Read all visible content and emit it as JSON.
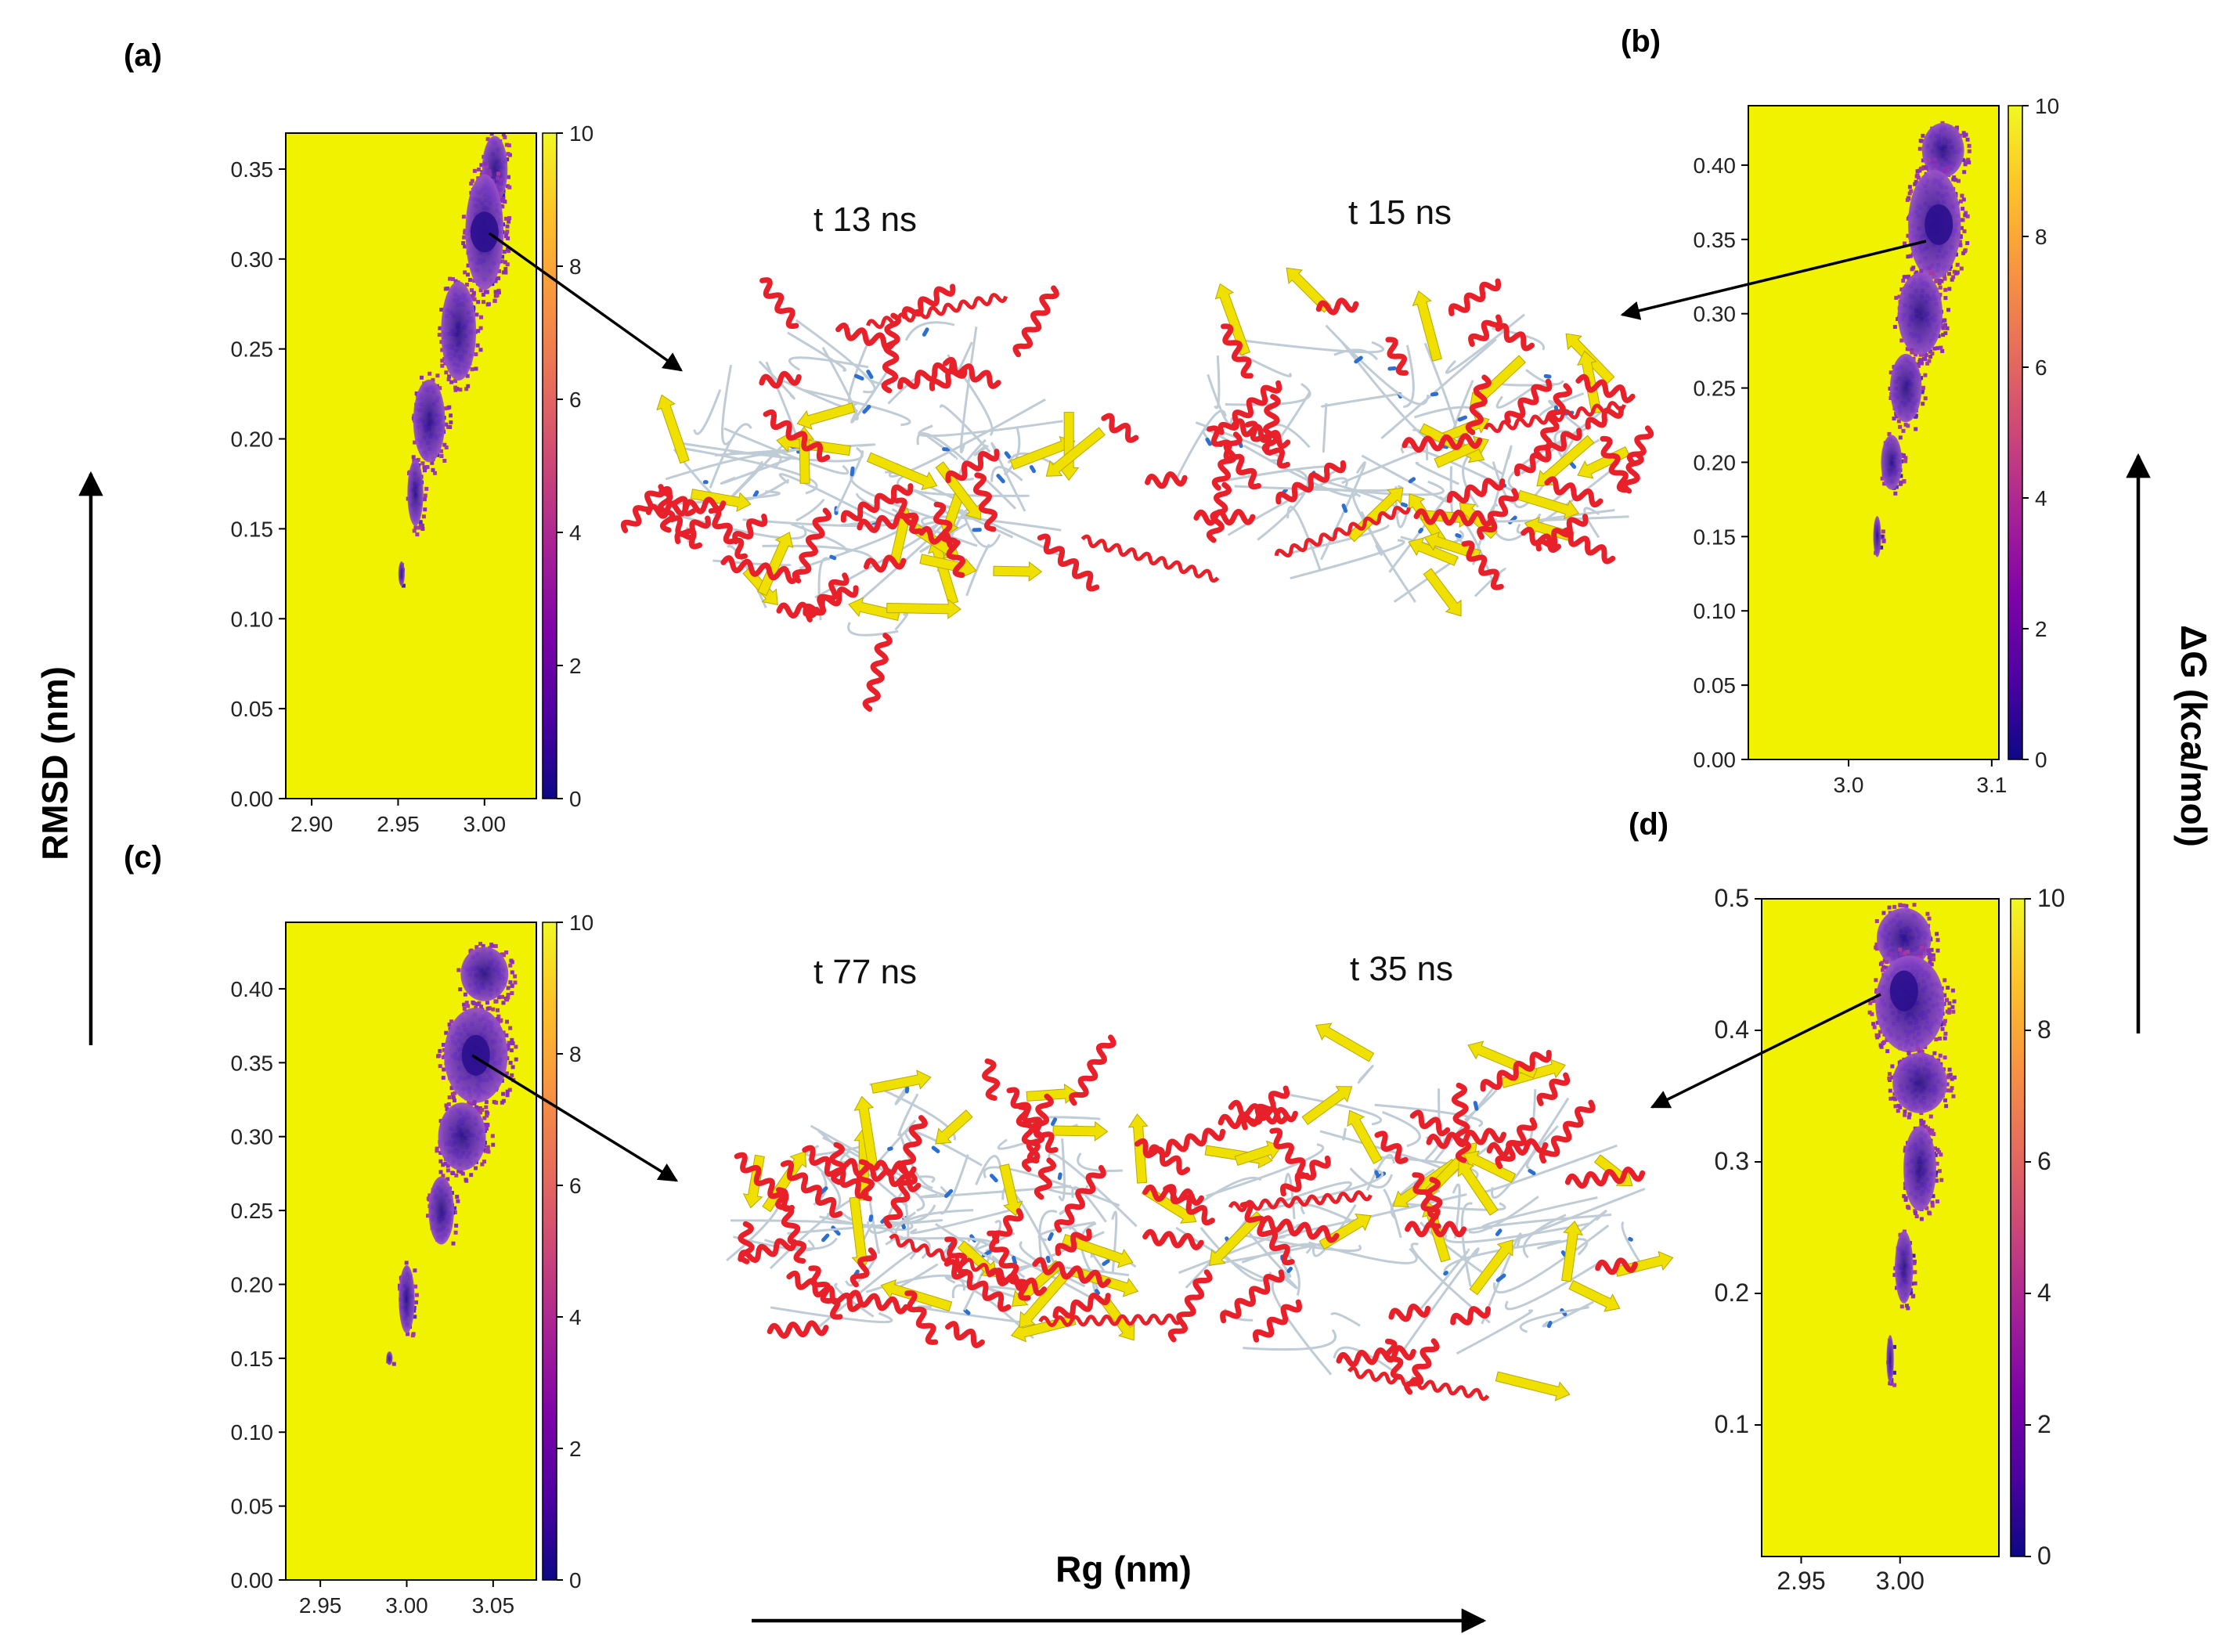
{
  "figure": {
    "axis_label_x": "Rg (nm)",
    "axis_label_y": "RMSD (nm)",
    "axis_label_energy": "ΔG (kca/mol)"
  },
  "structures": [
    {
      "label": "t 13 ns"
    },
    {
      "label": "t 15 ns"
    },
    {
      "label": "t 77 ns"
    },
    {
      "label": "t 35 ns"
    }
  ],
  "colors": {
    "background_free_energy": "#F1F200",
    "helix": "#E8202A",
    "sheet": "#F0E000",
    "coil": "#BFCCD6",
    "turn": "#2D6FD0"
  },
  "chart_data": [
    {
      "panel_label": "(a)",
      "type": "heatmap",
      "title": "",
      "xlabel": "Rg (nm)",
      "ylabel": "RMSD (nm)",
      "xlim": [
        2.885,
        3.03
      ],
      "ylim": [
        0.0,
        0.37
      ],
      "xticks": [
        2.9,
        2.95,
        3.0
      ],
      "xtick_labels": [
        "2.90",
        "2.95",
        "3.00"
      ],
      "yticks": [
        0.0,
        0.05,
        0.1,
        0.15,
        0.2,
        0.25,
        0.3,
        0.35
      ],
      "ytick_labels": [
        "0.00",
        "0.05",
        "0.10",
        "0.15",
        "0.20",
        "0.25",
        "0.30",
        "0.35"
      ],
      "colorbar_range": [
        0,
        10
      ],
      "colorbar_ticks": [
        "0",
        "2",
        "4",
        "6",
        "8",
        "10"
      ],
      "colormap": "plasma",
      "minimum": {
        "rg": 3.0,
        "rmsd": 0.315
      },
      "density_region": [
        {
          "rg": 3.006,
          "rmsd": 0.35,
          "width": 0.016,
          "height": 0.04
        },
        {
          "rg": 3.0,
          "rmsd": 0.315,
          "width": 0.024,
          "height": 0.07
        },
        {
          "rg": 2.985,
          "rmsd": 0.26,
          "width": 0.022,
          "height": 0.06
        },
        {
          "rg": 2.968,
          "rmsd": 0.21,
          "width": 0.02,
          "height": 0.05
        },
        {
          "rg": 2.96,
          "rmsd": 0.17,
          "width": 0.01,
          "height": 0.04
        },
        {
          "rg": 2.952,
          "rmsd": 0.125,
          "width": 0.004,
          "height": 0.015
        }
      ]
    },
    {
      "panel_label": "(b)",
      "type": "heatmap",
      "title": "",
      "xlabel": "Rg (nm)",
      "ylabel": "RMSD (nm)",
      "xlim": [
        2.93,
        3.105
      ],
      "ylim": [
        0.0,
        0.44
      ],
      "xticks": [
        3.0,
        3.1
      ],
      "xtick_labels": [
        "3.0",
        "3.1"
      ],
      "yticks": [
        0.0,
        0.05,
        0.1,
        0.15,
        0.2,
        0.25,
        0.3,
        0.35,
        0.4
      ],
      "ytick_labels": [
        "0.00",
        "0.05",
        "0.10",
        "0.15",
        "0.20",
        "0.25",
        "0.30",
        "0.35",
        "0.40"
      ],
      "colorbar_range": [
        0,
        10
      ],
      "colorbar_ticks": [
        "0",
        "2",
        "4",
        "6",
        "8",
        "10"
      ],
      "colormap": "plasma",
      "minimum": {
        "rg": 3.063,
        "rmsd": 0.36
      },
      "density_region": [
        {
          "rg": 3.066,
          "rmsd": 0.41,
          "width": 0.032,
          "height": 0.04
        },
        {
          "rg": 3.06,
          "rmsd": 0.36,
          "width": 0.04,
          "height": 0.08
        },
        {
          "rg": 3.05,
          "rmsd": 0.3,
          "width": 0.034,
          "height": 0.06
        },
        {
          "rg": 3.04,
          "rmsd": 0.25,
          "width": 0.024,
          "height": 0.05
        },
        {
          "rg": 3.03,
          "rmsd": 0.2,
          "width": 0.016,
          "height": 0.04
        },
        {
          "rg": 3.02,
          "rmsd": 0.15,
          "width": 0.006,
          "height": 0.03
        }
      ]
    },
    {
      "panel_label": "(c)",
      "type": "heatmap",
      "title": "",
      "xlabel": "Rg (nm)",
      "ylabel": "RMSD (nm)",
      "xlim": [
        2.93,
        3.075
      ],
      "ylim": [
        0.0,
        0.445
      ],
      "xticks": [
        2.95,
        3.0,
        3.05
      ],
      "xtick_labels": [
        "2.95",
        "3.00",
        "3.05"
      ],
      "yticks": [
        0.0,
        0.05,
        0.1,
        0.15,
        0.2,
        0.25,
        0.3,
        0.35,
        0.4
      ],
      "ytick_labels": [
        "0.00",
        "0.05",
        "0.10",
        "0.15",
        "0.20",
        "0.25",
        "0.30",
        "0.35",
        "0.40"
      ],
      "colorbar_range": [
        0,
        10
      ],
      "colorbar_ticks": [
        "0",
        "2",
        "4",
        "6",
        "8",
        "10"
      ],
      "colormap": "plasma",
      "minimum": {
        "rg": 3.04,
        "rmsd": 0.355
      },
      "density_region": [
        {
          "rg": 3.045,
          "rmsd": 0.41,
          "width": 0.03,
          "height": 0.04
        },
        {
          "rg": 3.04,
          "rmsd": 0.355,
          "width": 0.04,
          "height": 0.07
        },
        {
          "rg": 3.032,
          "rmsd": 0.3,
          "width": 0.03,
          "height": 0.05
        },
        {
          "rg": 3.02,
          "rmsd": 0.25,
          "width": 0.016,
          "height": 0.05
        },
        {
          "rg": 3.0,
          "rmsd": 0.19,
          "width": 0.01,
          "height": 0.05
        },
        {
          "rg": 2.99,
          "rmsd": 0.15,
          "width": 0.004,
          "height": 0.01
        }
      ]
    },
    {
      "panel_label": "(d)",
      "type": "heatmap",
      "title": "",
      "xlabel": "Rg (nm)",
      "ylabel": "RMSD (nm)",
      "xlim": [
        2.93,
        3.05
      ],
      "ylim": [
        0.0,
        0.5
      ],
      "xticks": [
        2.95,
        3.0
      ],
      "xtick_labels": [
        "2.95",
        "3.00"
      ],
      "yticks": [
        0.1,
        0.2,
        0.3,
        0.4,
        0.5
      ],
      "ytick_labels": [
        "0.1",
        "0.2",
        "0.3",
        "0.4",
        "0.5"
      ],
      "colorbar_range": [
        0,
        10
      ],
      "colorbar_ticks": [
        "0",
        "2",
        "4",
        "6",
        "8",
        "10"
      ],
      "colormap": "plasma",
      "minimum": {
        "rg": 3.002,
        "rmsd": 0.43
      },
      "density_region": [
        {
          "rg": 3.002,
          "rmsd": 0.47,
          "width": 0.03,
          "height": 0.05
        },
        {
          "rg": 3.005,
          "rmsd": 0.42,
          "width": 0.038,
          "height": 0.08
        },
        {
          "rg": 3.01,
          "rmsd": 0.36,
          "width": 0.03,
          "height": 0.05
        },
        {
          "rg": 3.01,
          "rmsd": 0.295,
          "width": 0.018,
          "height": 0.07
        },
        {
          "rg": 3.002,
          "rmsd": 0.22,
          "width": 0.01,
          "height": 0.06
        },
        {
          "rg": 2.995,
          "rmsd": 0.15,
          "width": 0.004,
          "height": 0.04
        }
      ]
    }
  ]
}
